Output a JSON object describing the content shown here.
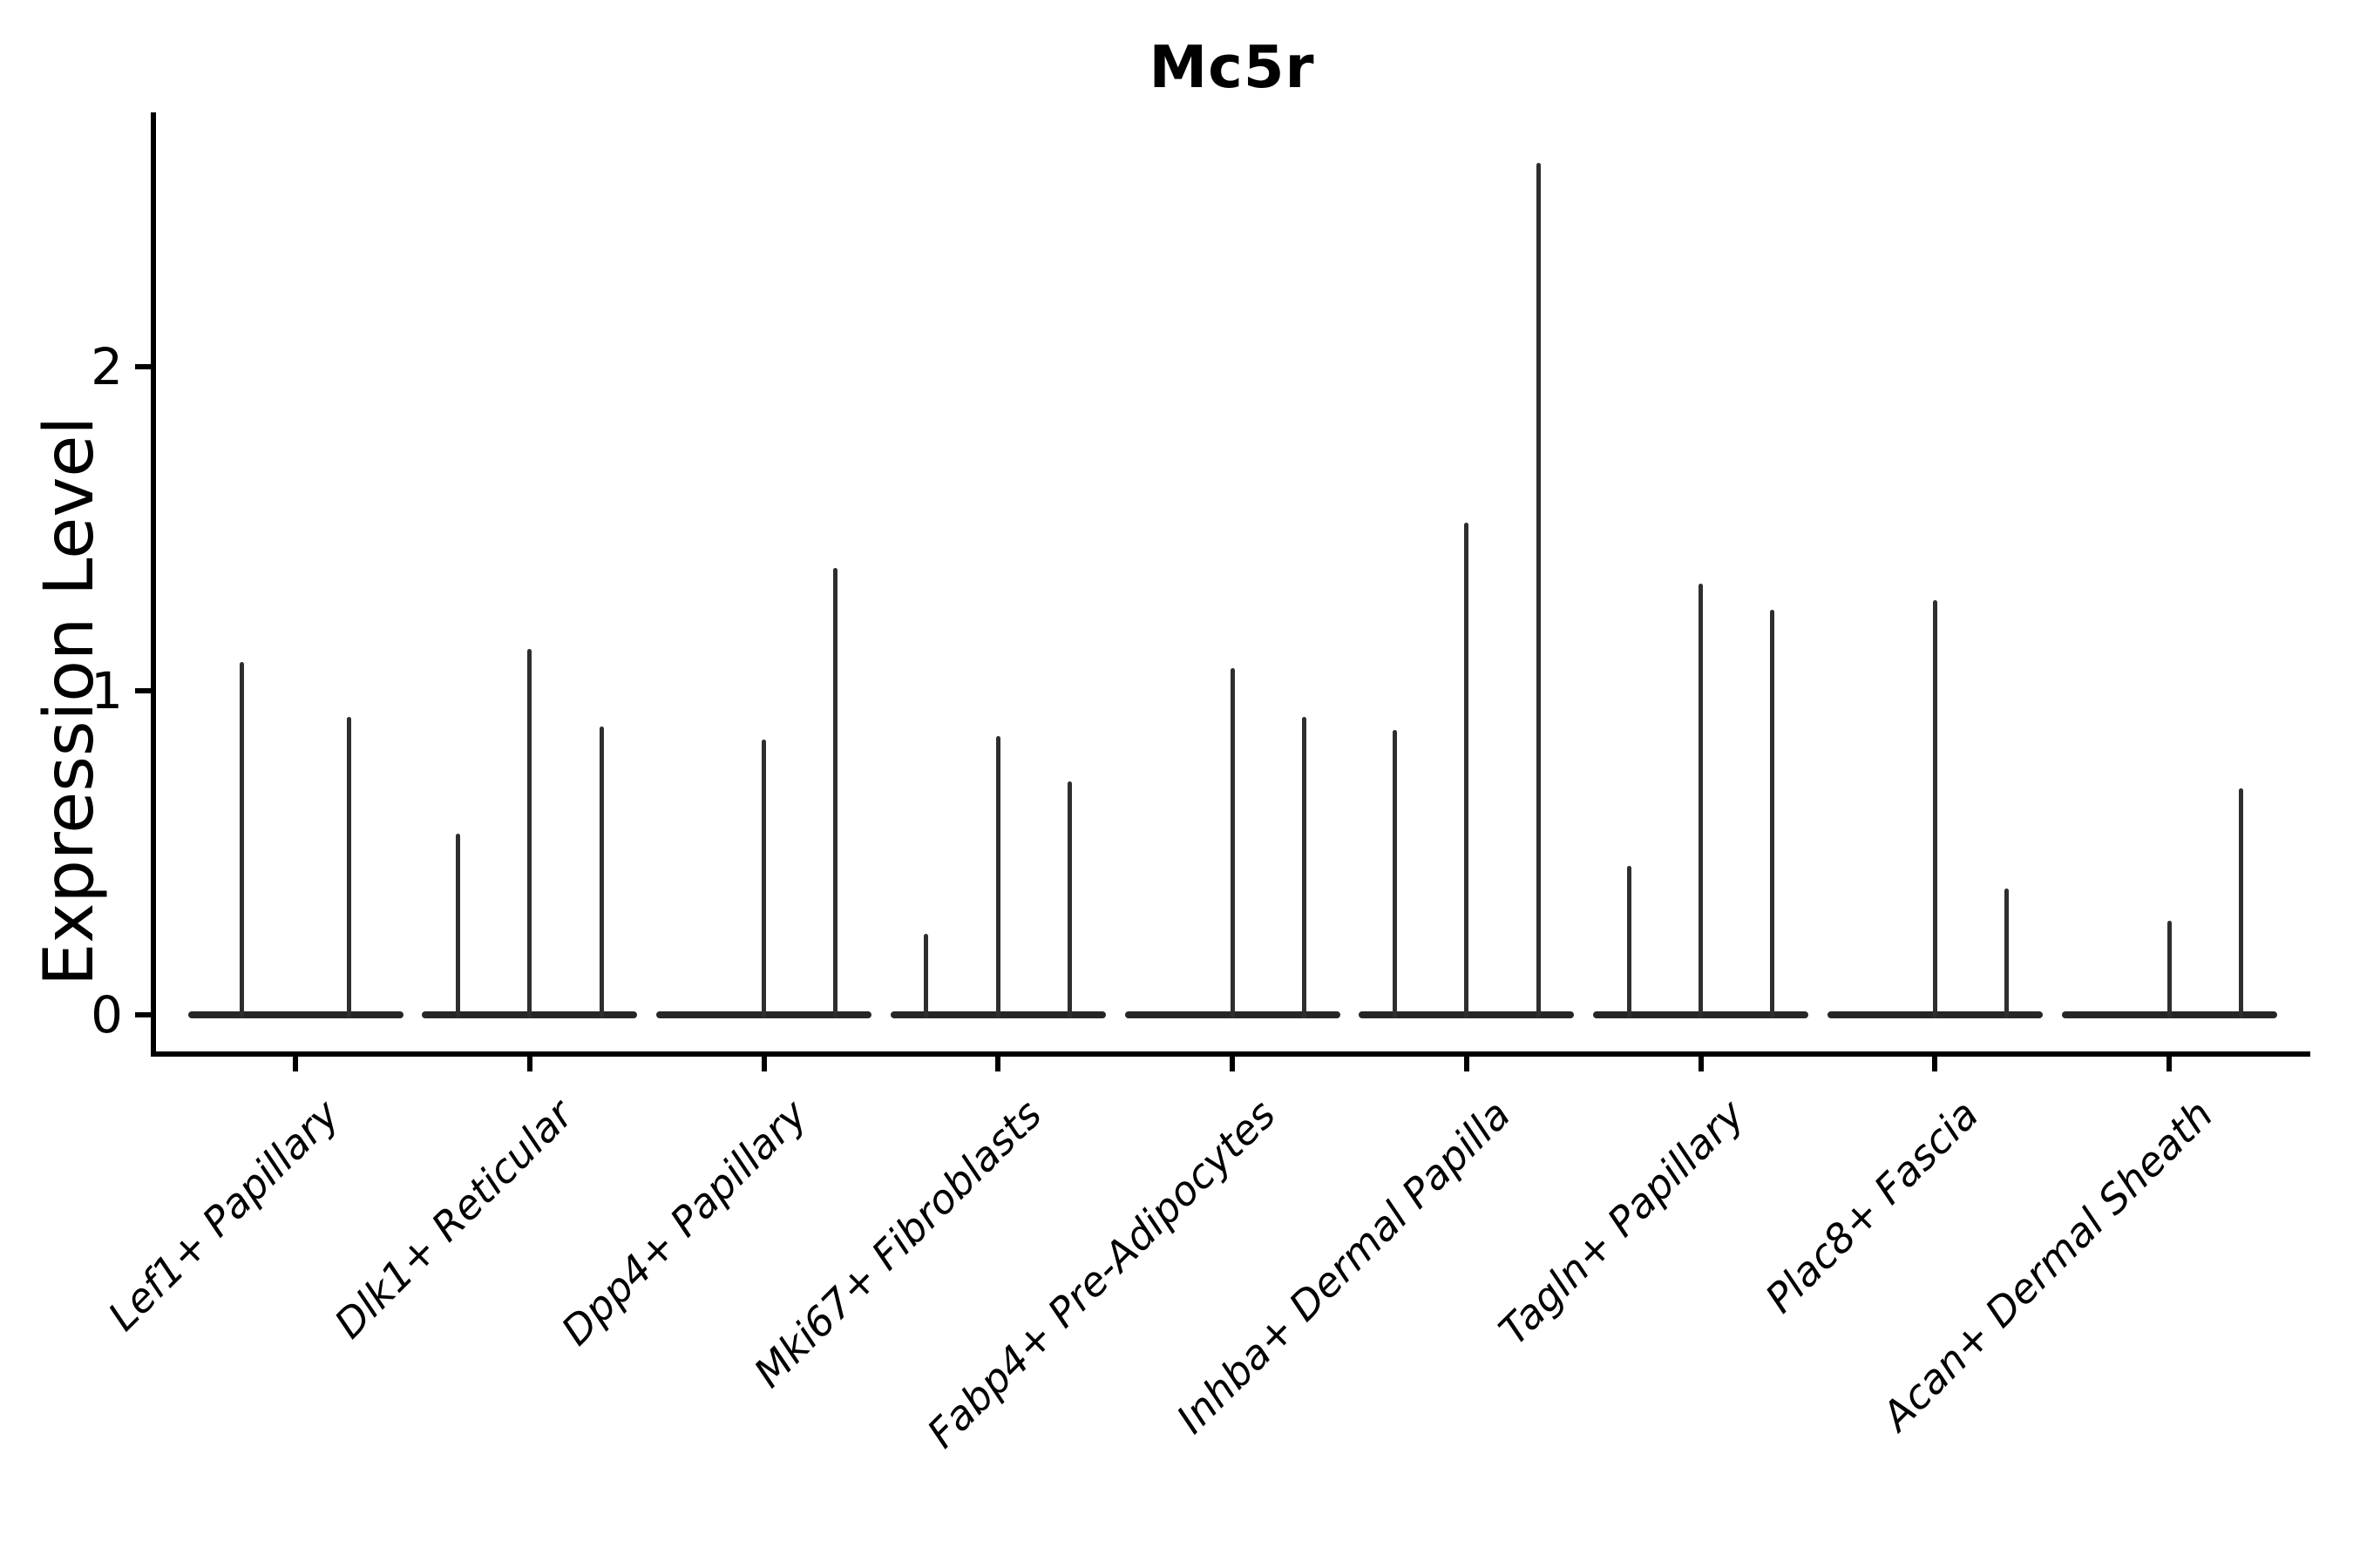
{
  "title": "Mc5r",
  "ylabel": "Expression Level",
  "chart_data": {
    "type": "violin",
    "title": "Mc5r",
    "xlabel": "",
    "ylabel": "Expression Level",
    "grid": false,
    "legend": false,
    "background": "#ffffff",
    "line_color": "#2e2e2e",
    "yticks": [
      "0",
      "1",
      "2"
    ],
    "ytick_values": [
      0,
      1,
      2
    ],
    "ylim": [
      -0.12,
      2.78
    ],
    "description": "Violin plot of Mc5r expression; each cluster contains 2-3 very thin collapsed violins (flat body at 0 with a thin spike up to the max expression value). Value 0 means a flat violin with no spike.",
    "categories": [
      "Lef1+ Papillary",
      "Dlk1+ Reticular",
      "Dpp4+ Papillary",
      "Mki67+ Fibroblasts",
      "Fabp4+ Pre-Adipocytes",
      "Inhba+ Dermal Papilla",
      "Tagln+ Papillary",
      "Plac8+ Fascia",
      "Acan+ Dermal Sheath"
    ],
    "series": [
      {
        "name": "Lef1+ Papillary",
        "violin_max_values": [
          1.09,
          0.92
        ]
      },
      {
        "name": "Dlk1+ Reticular",
        "violin_max_values": [
          0.56,
          1.13,
          0.89
        ]
      },
      {
        "name": "Dpp4+ Papillary",
        "violin_max_values": [
          0,
          0.85,
          1.38
        ]
      },
      {
        "name": "Mki67+ Fibroblasts",
        "violin_max_values": [
          0.25,
          0.86,
          0.72
        ]
      },
      {
        "name": "Fabp4+ Pre-Adipocytes",
        "violin_max_values": [
          0,
          1.07,
          0.92
        ]
      },
      {
        "name": "Inhba+ Dermal Papilla",
        "violin_max_values": [
          0.88,
          1.52,
          2.63
        ]
      },
      {
        "name": "Tagln+ Papillary",
        "violin_max_values": [
          0.46,
          1.33,
          1.25
        ]
      },
      {
        "name": "Plac8+ Fascia",
        "violin_max_values": [
          0,
          1.28,
          0.39
        ]
      },
      {
        "name": "Acan+ Dermal Sheath",
        "violin_max_values": [
          0,
          0.29,
          0.7
        ]
      }
    ]
  }
}
